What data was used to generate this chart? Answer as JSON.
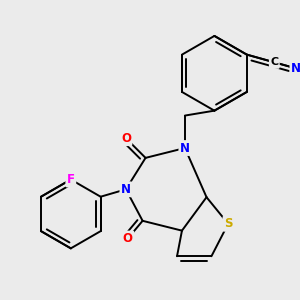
{
  "background_color": "#ebebeb",
  "atom_colors": {
    "C": "#000000",
    "N": "#0000ff",
    "O": "#ff0000",
    "S": "#ccaa00",
    "F": "#ff00ff"
  },
  "lw": 1.4
}
